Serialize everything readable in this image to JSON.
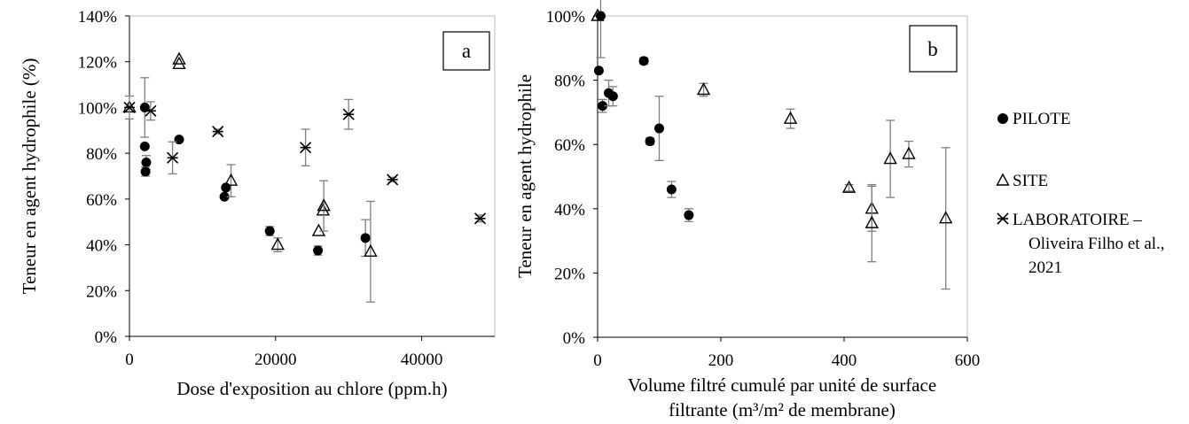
{
  "legend": {
    "pilote": "PILOTE",
    "site": "SITE",
    "labo_line1": "LABORATOIRE –",
    "labo_line2": "Oliveira Filho et al.,",
    "labo_line3": "2021"
  },
  "colors": {
    "marker": "#000000",
    "errorbar": "#7f7f7f",
    "frame": "#000000"
  },
  "chart_data": [
    {
      "type": "scatter",
      "panel_label": "a",
      "xlabel": "Dose d'exposition au chlore (ppm.h)",
      "ylabel": "Teneur en agent hydrophile (%)",
      "xlim": [
        0,
        50000
      ],
      "ylim": [
        0,
        140
      ],
      "x_ticks": [
        0,
        20000,
        40000
      ],
      "x_tick_labels": [
        "0",
        "20000",
        "40000"
      ],
      "y_ticks": [
        0,
        20,
        40,
        60,
        80,
        100,
        120,
        140
      ],
      "y_tick_labels": [
        "0%",
        "20%",
        "40%",
        "60%",
        "80%",
        "100%",
        "120%",
        "140%"
      ],
      "grid": false,
      "series": [
        {
          "name": "PILOTE",
          "marker": "circle",
          "points": [
            {
              "x": 2100,
              "y": 100,
              "err": 13
            },
            {
              "x": 2100,
              "y": 83,
              "err": 0
            },
            {
              "x": 2300,
              "y": 76,
              "err": 3
            },
            {
              "x": 2200,
              "y": 72,
              "err": 2
            },
            {
              "x": 6800,
              "y": 86,
              "err": 0
            },
            {
              "x": 13000,
              "y": 61,
              "err": 0
            },
            {
              "x": 13200,
              "y": 65,
              "err": 0
            },
            {
              "x": 19200,
              "y": 46,
              "err": 2
            },
            {
              "x": 25800,
              "y": 37.5,
              "err": 2
            },
            {
              "x": 32300,
              "y": 43,
              "err": 8
            }
          ]
        },
        {
          "name": "SITE",
          "marker": "triangle",
          "points": [
            {
              "x": 0,
              "y": 100,
              "err": 0
            },
            {
              "x": 6800,
              "y": 121,
              "err": 0
            },
            {
              "x": 6800,
              "y": 119,
              "err": 0
            },
            {
              "x": 13900,
              "y": 68,
              "err": 7
            },
            {
              "x": 20300,
              "y": 40,
              "err": 3
            },
            {
              "x": 25900,
              "y": 46,
              "err": 0
            },
            {
              "x": 26500,
              "y": 55,
              "err": 0
            },
            {
              "x": 26600,
              "y": 57,
              "err": 11
            },
            {
              "x": 33000,
              "y": 37,
              "err": 22
            }
          ]
        },
        {
          "name": "LABORATOIRE – Oliveira Filho et al., 2021",
          "marker": "star",
          "points": [
            {
              "x": 0,
              "y": 100,
              "err": 5
            },
            {
              "x": 2900,
              "y": 98.5,
              "err": 4
            },
            {
              "x": 5900,
              "y": 78,
              "err": 7
            },
            {
              "x": 12100,
              "y": 89.5,
              "err": 1
            },
            {
              "x": 24100,
              "y": 82.5,
              "err": 8
            },
            {
              "x": 30000,
              "y": 97,
              "err": 6.5
            },
            {
              "x": 36000,
              "y": 68.5,
              "err": 1
            },
            {
              "x": 48000,
              "y": 51.5,
              "err": 1.5
            }
          ]
        }
      ]
    },
    {
      "type": "scatter",
      "panel_label": "b",
      "xlabel_line1": "Volume filtré cumulé par unité de surface",
      "xlabel_line2": "filtrante (m³/m² de membrane)",
      "ylabel": "Teneur en agent hydrophile",
      "xlim": [
        0,
        600
      ],
      "ylim": [
        0,
        100
      ],
      "x_ticks": [
        0,
        200,
        400,
        600
      ],
      "x_tick_labels": [
        "0",
        "200",
        "400",
        "600"
      ],
      "y_ticks": [
        0,
        20,
        40,
        60,
        80,
        100
      ],
      "y_tick_labels": [
        "0%",
        "20%",
        "40%",
        "60%",
        "80%",
        "100%"
      ],
      "grid": false,
      "series": [
        {
          "name": "PILOTE",
          "marker": "circle",
          "points": [
            {
              "x": 5,
              "y": 100,
              "err": 13
            },
            {
              "x": 2,
              "y": 83,
              "err": 0
            },
            {
              "x": 8,
              "y": 72,
              "err": 2
            },
            {
              "x": 18,
              "y": 76,
              "err": 4
            },
            {
              "x": 25,
              "y": 75,
              "err": 3
            },
            {
              "x": 75,
              "y": 86,
              "err": 1
            },
            {
              "x": 85,
              "y": 61,
              "err": 1
            },
            {
              "x": 100,
              "y": 65,
              "err": 10
            },
            {
              "x": 120,
              "y": 46,
              "err": 2.5
            },
            {
              "x": 148,
              "y": 38,
              "err": 2
            }
          ]
        },
        {
          "name": "SITE",
          "marker": "triangle",
          "points": [
            {
              "x": 0,
              "y": 100,
              "err": 0
            },
            {
              "x": 172,
              "y": 77,
              "err": 2
            },
            {
              "x": 313,
              "y": 68,
              "err": 3
            },
            {
              "x": 408,
              "y": 46.5,
              "err": 1
            },
            {
              "x": 445,
              "y": 40,
              "err": 7
            },
            {
              "x": 445,
              "y": 35.5,
              "err": 12
            },
            {
              "x": 475,
              "y": 55.5,
              "err": 12
            },
            {
              "x": 505,
              "y": 57,
              "err": 4
            },
            {
              "x": 565,
              "y": 37,
              "err": 22
            }
          ]
        }
      ]
    }
  ]
}
